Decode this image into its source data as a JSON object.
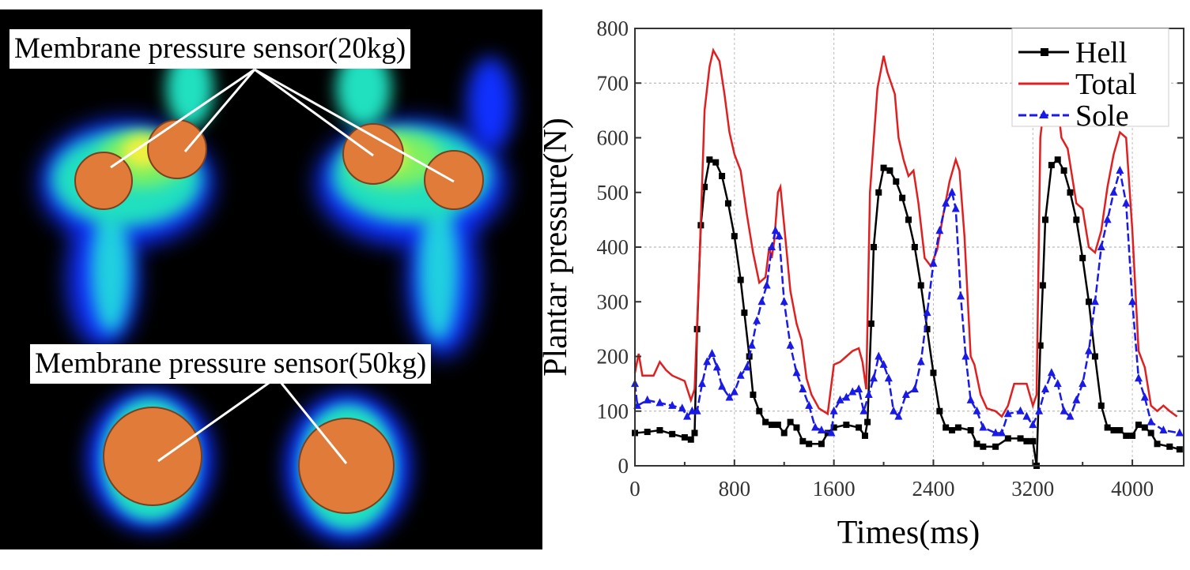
{
  "left_panel": {
    "label_top": "Membrane pressure sensor(20kg)",
    "label_bottom": "Membrane pressure sensor(50kg)",
    "sensor_color": "#e07b39"
  },
  "chart_data": {
    "type": "line",
    "xlabel": "Times(ms)",
    "ylabel": "Plantar pressure(N)",
    "xlim": [
      0,
      4400
    ],
    "ylim": [
      0,
      800
    ],
    "xticks": [
      0,
      800,
      1600,
      2400,
      3200,
      4000
    ],
    "yticks": [
      0,
      100,
      200,
      300,
      400,
      500,
      600,
      700,
      800
    ],
    "grid": true,
    "legend_position": "top-right",
    "series": [
      {
        "name": "Hell",
        "color": "#000000",
        "marker": "square",
        "x": [
          0,
          100,
          200,
          300,
          400,
          450,
          480,
          500,
          530,
          560,
          600,
          650,
          700,
          750,
          800,
          850,
          880,
          920,
          950,
          1000,
          1050,
          1100,
          1150,
          1200,
          1250,
          1300,
          1350,
          1400,
          1500,
          1550,
          1600,
          1700,
          1800,
          1850,
          1870,
          1900,
          1920,
          1960,
          2000,
          2050,
          2100,
          2150,
          2200,
          2250,
          2300,
          2350,
          2400,
          2450,
          2500,
          2550,
          2600,
          2700,
          2750,
          2800,
          2900,
          3000,
          3100,
          3150,
          3200,
          3230,
          3260,
          3280,
          3300,
          3350,
          3400,
          3450,
          3500,
          3550,
          3600,
          3650,
          3700,
          3750,
          3800,
          3850,
          3900,
          3950,
          4000,
          4050,
          4100,
          4150,
          4200,
          4300,
          4380
        ],
        "y": [
          60,
          62,
          65,
          58,
          52,
          48,
          60,
          250,
          440,
          510,
          560,
          555,
          530,
          480,
          420,
          340,
          280,
          200,
          130,
          100,
          80,
          75,
          75,
          60,
          80,
          70,
          45,
          40,
          40,
          60,
          70,
          75,
          70,
          55,
          80,
          260,
          400,
          500,
          545,
          540,
          520,
          490,
          450,
          400,
          330,
          250,
          170,
          100,
          70,
          65,
          70,
          65,
          40,
          35,
          35,
          50,
          50,
          45,
          45,
          0,
          220,
          330,
          450,
          550,
          560,
          540,
          500,
          450,
          380,
          300,
          200,
          110,
          70,
          65,
          65,
          55,
          55,
          75,
          70,
          60,
          40,
          35,
          30
        ]
      },
      {
        "name": "Total",
        "color": "#e02020",
        "marker": "none",
        "x": [
          0,
          30,
          60,
          150,
          200,
          250,
          300,
          400,
          450,
          480,
          520,
          560,
          600,
          630,
          680,
          720,
          760,
          800,
          850,
          900,
          950,
          1000,
          1050,
          1080,
          1100,
          1120,
          1150,
          1170,
          1200,
          1250,
          1300,
          1340,
          1380,
          1420,
          1480,
          1550,
          1600,
          1650,
          1700,
          1750,
          1800,
          1830,
          1860,
          1890,
          1950,
          2000,
          2030,
          2090,
          2120,
          2160,
          2200,
          2240,
          2280,
          2330,
          2380,
          2430,
          2480,
          2530,
          2580,
          2610,
          2650,
          2700,
          2730,
          2780,
          2830,
          2900,
          2950,
          3000,
          3050,
          3150,
          3200,
          3230,
          3260,
          3300,
          3350,
          3400,
          3430,
          3480,
          3550,
          3600,
          3650,
          3700,
          3750,
          3800,
          3850,
          3900,
          3950,
          4000,
          4050,
          4100,
          4150,
          4200,
          4250,
          4300,
          4360
        ],
        "y": [
          170,
          205,
          165,
          165,
          190,
          175,
          165,
          155,
          120,
          140,
          380,
          650,
          730,
          760,
          740,
          680,
          610,
          570,
          540,
          460,
          390,
          335,
          345,
          400,
          380,
          410,
          500,
          510,
          440,
          320,
          260,
          230,
          160,
          130,
          105,
          95,
          185,
          190,
          200,
          210,
          215,
          190,
          140,
          500,
          690,
          750,
          720,
          680,
          600,
          560,
          530,
          540,
          480,
          380,
          365,
          395,
          460,
          520,
          560,
          540,
          420,
          200,
          185,
          130,
          105,
          100,
          90,
          110,
          150,
          150,
          110,
          130,
          600,
          680,
          700,
          660,
          600,
          580,
          480,
          470,
          400,
          390,
          430,
          510,
          570,
          610,
          600,
          430,
          210,
          180,
          110,
          100,
          110,
          100,
          90
        ]
      },
      {
        "name": "Sole",
        "color": "#1a1ae6",
        "marker": "triangle",
        "x": [
          0,
          20,
          100,
          200,
          300,
          380,
          420,
          460,
          500,
          540,
          580,
          620,
          660,
          700,
          760,
          800,
          850,
          900,
          940,
          980,
          1020,
          1060,
          1100,
          1130,
          1160,
          1200,
          1250,
          1300,
          1350,
          1400,
          1450,
          1500,
          1580,
          1600,
          1650,
          1700,
          1750,
          1800,
          1840,
          1880,
          1920,
          1960,
          2000,
          2040,
          2080,
          2120,
          2180,
          2250,
          2300,
          2350,
          2400,
          2450,
          2500,
          2550,
          2580,
          2620,
          2660,
          2700,
          2750,
          2800,
          2900,
          2950,
          3000,
          3100,
          3150,
          3200,
          3250,
          3300,
          3350,
          3400,
          3450,
          3500,
          3550,
          3600,
          3650,
          3700,
          3750,
          3800,
          3850,
          3900,
          3950,
          4000,
          4050,
          4100,
          4150,
          4250,
          4380
        ],
        "y": [
          150,
          110,
          120,
          115,
          110,
          105,
          90,
          100,
          100,
          150,
          190,
          205,
          180,
          145,
          125,
          135,
          165,
          180,
          220,
          265,
          300,
          330,
          400,
          430,
          420,
          300,
          220,
          170,
          140,
          110,
          70,
          65,
          60,
          100,
          120,
          125,
          135,
          140,
          100,
          130,
          160,
          200,
          185,
          160,
          100,
          90,
          130,
          140,
          190,
          280,
          370,
          430,
          480,
          500,
          470,
          310,
          200,
          120,
          100,
          70,
          60,
          60,
          95,
          100,
          90,
          75,
          100,
          140,
          170,
          150,
          100,
          90,
          120,
          150,
          210,
          300,
          400,
          450,
          500,
          540,
          480,
          300,
          160,
          125,
          80,
          65,
          60
        ]
      }
    ]
  }
}
